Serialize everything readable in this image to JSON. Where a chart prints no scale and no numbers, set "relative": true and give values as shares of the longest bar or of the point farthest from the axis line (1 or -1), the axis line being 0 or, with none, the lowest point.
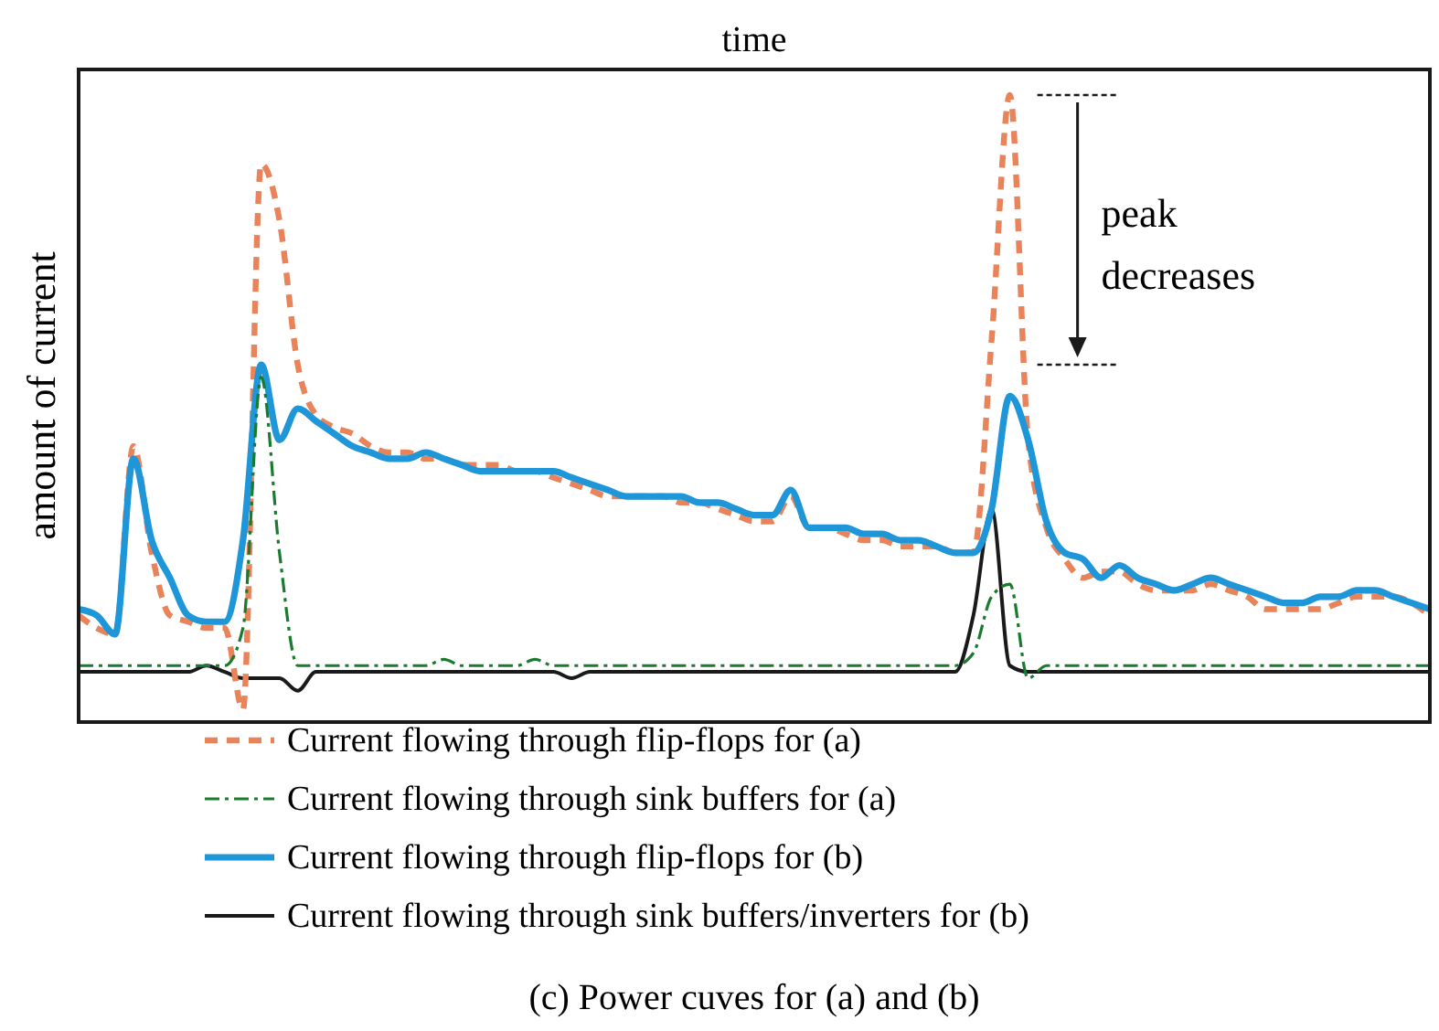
{
  "chart_data": {
    "type": "line",
    "relative": true,
    "xlabel": "time",
    "ylabel": "amount of current",
    "legend": "bottom",
    "categories": [
      null,
      null,
      null,
      null,
      null,
      null,
      null,
      null,
      null,
      null,
      null,
      null,
      null,
      null,
      null,
      null,
      null,
      null,
      null,
      null,
      null,
      null,
      null,
      null,
      null,
      null,
      null,
      null,
      null,
      null,
      null,
      null,
      null,
      null,
      null,
      null,
      null,
      null,
      null,
      null,
      null,
      null,
      null,
      null,
      null,
      null,
      null,
      null,
      null,
      null,
      null,
      null,
      null,
      null,
      null,
      null,
      null,
      null,
      null,
      null,
      null,
      null,
      null,
      null,
      null,
      null,
      null,
      null,
      null,
      null,
      null,
      null,
      null,
      null,
      null
    ],
    "series": [
      {
        "name": "Current flowing through flip-flops for (a)",
        "color": "#e8835a",
        "line_style": "dashed",
        "values": [
          0.17,
          0.15,
          0.14,
          0.44,
          0.27,
          0.17,
          0.16,
          0.15,
          0.15,
          0.02,
          0.89,
          0.8,
          0.57,
          0.49,
          0.47,
          0.46,
          0.44,
          0.43,
          0.43,
          0.42,
          0.42,
          0.41,
          0.41,
          0.41,
          0.4,
          0.4,
          0.39,
          0.38,
          0.37,
          0.36,
          0.36,
          0.36,
          0.36,
          0.35,
          0.35,
          0.34,
          0.33,
          0.32,
          0.32,
          0.36,
          0.31,
          0.31,
          0.3,
          0.29,
          0.29,
          0.28,
          0.28,
          0.28,
          0.27,
          0.27,
          0.61,
          1.0,
          0.45,
          0.31,
          0.26,
          0.23,
          0.24,
          0.24,
          0.22,
          0.21,
          0.21,
          0.21,
          0.22,
          0.21,
          0.2,
          0.18,
          0.18,
          0.18,
          0.18,
          0.19,
          0.2,
          0.2,
          0.2,
          0.19,
          0.17
        ]
      },
      {
        "name": "Current flowing through sink buffers for (a)",
        "color": "#1a7a2e",
        "line_style": "dashdot",
        "values": [
          0.09,
          0.09,
          0.09,
          0.09,
          0.09,
          0.09,
          0.09,
          0.09,
          0.09,
          0.15,
          0.55,
          0.27,
          0.09,
          0.09,
          0.09,
          0.09,
          0.09,
          0.09,
          0.09,
          0.09,
          0.1,
          0.09,
          0.09,
          0.09,
          0.09,
          0.1,
          0.09,
          0.09,
          0.09,
          0.09,
          0.09,
          0.09,
          0.09,
          0.09,
          0.09,
          0.09,
          0.09,
          0.09,
          0.09,
          0.09,
          0.09,
          0.09,
          0.09,
          0.09,
          0.09,
          0.09,
          0.09,
          0.09,
          0.09,
          0.11,
          0.2,
          0.22,
          0.07,
          0.09,
          0.09,
          0.09,
          0.09,
          0.09,
          0.09,
          0.09,
          0.09,
          0.09,
          0.09,
          0.09,
          0.09,
          0.09,
          0.09,
          0.09,
          0.09,
          0.09,
          0.09,
          0.09,
          0.09,
          0.09,
          0.09
        ]
      },
      {
        "name": "Current flowing through flip-flops for (b)",
        "color": "#1e96d8",
        "line_style": "solid",
        "values": [
          0.18,
          0.17,
          0.14,
          0.42,
          0.29,
          0.23,
          0.17,
          0.16,
          0.16,
          0.29,
          0.57,
          0.45,
          0.5,
          0.48,
          0.46,
          0.44,
          0.43,
          0.42,
          0.42,
          0.43,
          0.42,
          0.41,
          0.4,
          0.4,
          0.4,
          0.4,
          0.4,
          0.39,
          0.38,
          0.37,
          0.36,
          0.36,
          0.36,
          0.36,
          0.35,
          0.35,
          0.34,
          0.33,
          0.33,
          0.37,
          0.31,
          0.31,
          0.31,
          0.3,
          0.3,
          0.29,
          0.29,
          0.28,
          0.27,
          0.27,
          0.34,
          0.52,
          0.45,
          0.32,
          0.27,
          0.26,
          0.23,
          0.25,
          0.23,
          0.22,
          0.21,
          0.22,
          0.23,
          0.22,
          0.21,
          0.2,
          0.19,
          0.19,
          0.2,
          0.2,
          0.21,
          0.21,
          0.2,
          0.19,
          0.18
        ]
      },
      {
        "name": "Current flowing through sink buffers/inverters for (b)",
        "color": "#1a1a1a",
        "line_style": "solid",
        "values": [
          0.08,
          0.08,
          0.08,
          0.08,
          0.08,
          0.08,
          0.08,
          0.09,
          0.08,
          0.07,
          0.07,
          0.07,
          0.05,
          0.08,
          0.08,
          0.08,
          0.08,
          0.08,
          0.08,
          0.08,
          0.08,
          0.08,
          0.08,
          0.08,
          0.08,
          0.08,
          0.08,
          0.07,
          0.08,
          0.08,
          0.08,
          0.08,
          0.08,
          0.08,
          0.08,
          0.08,
          0.08,
          0.08,
          0.08,
          0.08,
          0.08,
          0.08,
          0.08,
          0.08,
          0.08,
          0.08,
          0.08,
          0.08,
          0.08,
          0.17,
          0.34,
          0.09,
          0.08,
          0.08,
          0.08,
          0.08,
          0.08,
          0.08,
          0.08,
          0.08,
          0.08,
          0.08,
          0.08,
          0.08,
          0.08,
          0.08,
          0.08,
          0.08,
          0.08,
          0.08,
          0.08,
          0.08,
          0.08,
          0.08,
          0.08
        ]
      }
    ],
    "annotations": [
      "peak decreases",
      "(c) Power cuves for (a) and (b)"
    ]
  }
}
